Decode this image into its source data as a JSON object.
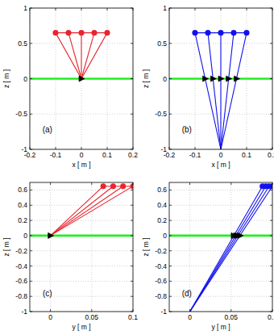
{
  "chart_data": [
    {
      "type": "line",
      "label": "(a)",
      "xlabel": "x [ m ]",
      "ylabel": "z [ m ]",
      "xlim": [
        -0.2,
        0.2
      ],
      "ylim": [
        -1,
        1
      ],
      "xticks": [
        -0.2,
        -0.1,
        0,
        0.1,
        0.2
      ],
      "yticks": [
        -1,
        -0.5,
        0,
        0.5,
        1
      ],
      "grid": true,
      "series": [
        {
          "x": [
            -0.2,
            0.2
          ],
          "values": [
            0,
            0
          ],
          "color": "#22ee22",
          "marker": "none",
          "line_style": "solid"
        },
        {
          "x": [
            -0.1,
            0
          ],
          "values": [
            0.65,
            0
          ],
          "color": "#e8242c",
          "marker": "none",
          "line_style": "solid"
        },
        {
          "x": [
            -0.05,
            0
          ],
          "values": [
            0.65,
            0
          ],
          "color": "#e8242c",
          "marker": "none",
          "line_style": "solid"
        },
        {
          "x": [
            0,
            0
          ],
          "values": [
            0.65,
            0
          ],
          "color": "#e8242c",
          "marker": "none",
          "line_style": "solid"
        },
        {
          "x": [
            0.05,
            0
          ],
          "values": [
            0.65,
            0
          ],
          "color": "#e8242c",
          "marker": "none",
          "line_style": "solid"
        },
        {
          "x": [
            0.1,
            0
          ],
          "values": [
            0.65,
            0
          ],
          "color": "#e8242c",
          "marker": "none",
          "line_style": "solid"
        },
        {
          "x": [
            -0.1,
            -0.05,
            0,
            0.05,
            0.1
          ],
          "values": [
            0.65,
            0.65,
            0.65,
            0.65,
            0.65
          ],
          "color": "#e8242c",
          "marker": "circle",
          "line_style": "solid"
        },
        {
          "x": [
            0
          ],
          "values": [
            0
          ],
          "color": "#000000",
          "marker": "triangle",
          "line_style": "none"
        }
      ]
    },
    {
      "type": "line",
      "label": "(b)",
      "xlabel": "x [ m ]",
      "ylabel": "z [ m ]",
      "xlim": [
        -0.2,
        0.2
      ],
      "ylim": [
        -1,
        1
      ],
      "xticks": [
        -0.2,
        -0.1,
        0,
        0.1,
        0.2
      ],
      "yticks": [
        -1,
        -0.5,
        0,
        0.5,
        1
      ],
      "grid": true,
      "series": [
        {
          "x": [
            -0.2,
            0.2
          ],
          "values": [
            0,
            0
          ],
          "color": "#22ee22",
          "marker": "none",
          "line_style": "solid"
        },
        {
          "x": [
            0,
            -0.1
          ],
          "values": [
            -1,
            0.65
          ],
          "color": "#1010ee",
          "marker": "none",
          "line_style": "solid"
        },
        {
          "x": [
            0,
            -0.05
          ],
          "values": [
            -1,
            0.65
          ],
          "color": "#1010ee",
          "marker": "none",
          "line_style": "solid"
        },
        {
          "x": [
            0,
            0
          ],
          "values": [
            -1,
            0.65
          ],
          "color": "#1010ee",
          "marker": "none",
          "line_style": "solid"
        },
        {
          "x": [
            0,
            0.05
          ],
          "values": [
            -1,
            0.65
          ],
          "color": "#1010ee",
          "marker": "none",
          "line_style": "solid"
        },
        {
          "x": [
            0,
            0.1
          ],
          "values": [
            -1,
            0.65
          ],
          "color": "#1010ee",
          "marker": "none",
          "line_style": "solid"
        },
        {
          "x": [
            -0.1,
            -0.05,
            0,
            0.05,
            0.1
          ],
          "values": [
            0.65,
            0.65,
            0.65,
            0.65,
            0.65
          ],
          "color": "#1010ee",
          "marker": "circle",
          "line_style": "solid"
        },
        {
          "x": [
            -0.061,
            -0.03,
            0,
            0.03,
            0.061
          ],
          "values": [
            0,
            0,
            0,
            0,
            0
          ],
          "color": "#000000",
          "marker": "triangle",
          "line_style": "none"
        }
      ]
    },
    {
      "type": "line",
      "label": "(c)",
      "xlabel": "y [ m ]",
      "ylabel": "z [ m ]",
      "xlim": [
        -0.025,
        0.1
      ],
      "ylim": [
        -1,
        0.7
      ],
      "xticks": [
        0,
        0.05,
        0.1
      ],
      "yticks": [
        -1,
        -0.8,
        -0.6,
        -0.4,
        -0.2,
        0,
        0.2,
        0.4,
        0.6
      ],
      "grid": true,
      "series": [
        {
          "x": [
            -0.025,
            0.1
          ],
          "values": [
            0,
            0
          ],
          "color": "#22ee22",
          "marker": "none",
          "line_style": "solid"
        },
        {
          "x": [
            0.064,
            0
          ],
          "values": [
            0.65,
            0
          ],
          "color": "#e8242c",
          "marker": "none",
          "line_style": "solid"
        },
        {
          "x": [
            0.076,
            0
          ],
          "values": [
            0.65,
            0
          ],
          "color": "#e8242c",
          "marker": "none",
          "line_style": "solid"
        },
        {
          "x": [
            0.088,
            0
          ],
          "values": [
            0.65,
            0
          ],
          "color": "#e8242c",
          "marker": "none",
          "line_style": "solid"
        },
        {
          "x": [
            0.1,
            0
          ],
          "values": [
            0.65,
            0
          ],
          "color": "#e8242c",
          "marker": "none",
          "line_style": "solid"
        },
        {
          "x": [
            0.064,
            0.076,
            0.088,
            0.1
          ],
          "values": [
            0.65,
            0.65,
            0.65,
            0.65
          ],
          "color": "#e8242c",
          "marker": "circle",
          "line_style": "solid"
        },
        {
          "x": [
            0
          ],
          "values": [
            0
          ],
          "color": "#000000",
          "marker": "triangle",
          "line_style": "none"
        }
      ]
    },
    {
      "type": "line",
      "label": "(d)",
      "xlabel": "y [ m ]",
      "ylabel": "z [ m ]",
      "xlim": [
        -0.025,
        0.1
      ],
      "ylim": [
        -1,
        0.7
      ],
      "xticks": [
        0,
        0.05,
        0.1
      ],
      "yticks": [
        -1,
        -0.8,
        -0.6,
        -0.4,
        -0.2,
        0,
        0.2,
        0.4,
        0.6
      ],
      "grid": true,
      "series": [
        {
          "x": [
            -0.025,
            0.1
          ],
          "values": [
            0,
            0
          ],
          "color": "#22ee22",
          "marker": "none",
          "line_style": "solid"
        },
        {
          "x": [
            0,
            0.088
          ],
          "values": [
            -1,
            0.65
          ],
          "color": "#1010ee",
          "marker": "none",
          "line_style": "solid"
        },
        {
          "x": [
            0,
            0.092
          ],
          "values": [
            -1,
            0.65
          ],
          "color": "#1010ee",
          "marker": "none",
          "line_style": "solid"
        },
        {
          "x": [
            0,
            0.096
          ],
          "values": [
            -1,
            0.65
          ],
          "color": "#1010ee",
          "marker": "none",
          "line_style": "solid"
        },
        {
          "x": [
            0,
            0.1
          ],
          "values": [
            -1,
            0.65
          ],
          "color": "#1010ee",
          "marker": "none",
          "line_style": "solid"
        },
        {
          "x": [
            0.088,
            0.092,
            0.096,
            0.1
          ],
          "values": [
            0.65,
            0.65,
            0.65,
            0.65
          ],
          "color": "#1010ee",
          "marker": "circle",
          "line_style": "solid"
        },
        {
          "x": [
            0.053,
            0.056,
            0.058,
            0.061
          ],
          "values": [
            0,
            0,
            0,
            0
          ],
          "color": "#000000",
          "marker": "triangle",
          "line_style": "none"
        }
      ]
    }
  ]
}
